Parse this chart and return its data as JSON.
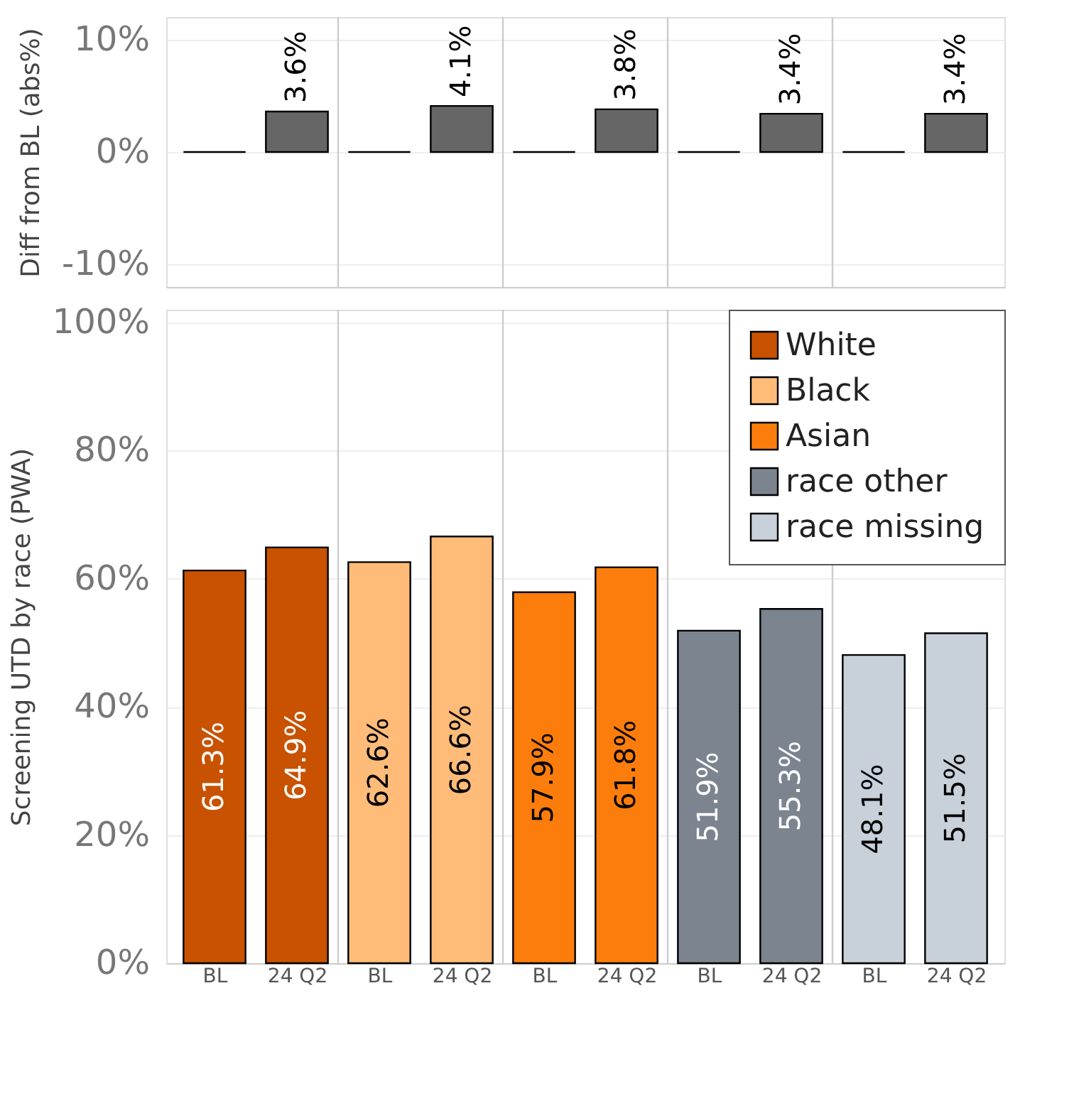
{
  "chart_data": [
    {
      "type": "bar",
      "ylabel": "Diff from BL (abs%)",
      "categories": [
        null,
        null,
        null,
        null,
        null,
        null,
        null,
        null,
        null,
        null
      ],
      "values": [
        0,
        3.6,
        0,
        4.1,
        0,
        3.8,
        0,
        3.4,
        0,
        3.4
      ],
      "colors": [
        "#000000",
        "#666666",
        "#000000",
        "#666666",
        "#000000",
        "#666666",
        "#000000",
        "#666666",
        "#000000",
        "#666666"
      ],
      "value_labels": [
        null,
        "3.6%",
        null,
        "4.1%",
        null,
        "3.8%",
        null,
        "3.4%",
        null,
        "3.4%"
      ],
      "ylim": [
        -12,
        12
      ],
      "yticks": [
        {
          "value": -10,
          "label": "-10%"
        },
        {
          "value": 0,
          "label": "0%"
        },
        {
          "value": 10,
          "label": "10%"
        }
      ],
      "grid": "y",
      "tick_labels": "y"
    },
    {
      "type": "bar",
      "ylabel": "Screening UTD by race (PWA)",
      "categories": [
        "BL",
        "24 Q2",
        "BL",
        "24 Q2",
        "BL",
        "24 Q2",
        "BL",
        "24 Q2",
        "BL",
        "24 Q2"
      ],
      "series": [
        {
          "name": "White",
          "color": "#c85200",
          "values": [
            61.3,
            64.9,
            null,
            null,
            null,
            null,
            null,
            null,
            null,
            null
          ],
          "value_labels": [
            "61.3%",
            "64.9%",
            null,
            null,
            null,
            null,
            null,
            null,
            null,
            null
          ]
        },
        {
          "name": "Black",
          "color": "#ffbc79",
          "values": [
            null,
            null,
            62.6,
            66.6,
            null,
            null,
            null,
            null,
            null,
            null
          ],
          "value_labels": [
            null,
            null,
            "62.6%",
            "66.6%",
            null,
            null,
            null,
            null,
            null,
            null
          ]
        },
        {
          "name": "Asian",
          "color": "#fc7d0b",
          "values": [
            null,
            null,
            null,
            null,
            57.9,
            61.8,
            null,
            null,
            null,
            null
          ],
          "value_labels": [
            null,
            null,
            null,
            null,
            "57.9%",
            "61.8%",
            null,
            null,
            null,
            null
          ]
        },
        {
          "name": "race other",
          "color": "#7b848f",
          "values": [
            null,
            null,
            null,
            null,
            null,
            null,
            51.9,
            55.3,
            null,
            null
          ],
          "value_labels": [
            null,
            null,
            null,
            null,
            null,
            null,
            "51.9%",
            "55.3%",
            null,
            null
          ]
        },
        {
          "name": "race missing",
          "color": "#c8d0d9",
          "values": [
            null,
            null,
            null,
            null,
            null,
            null,
            null,
            null,
            48.1,
            51.5
          ],
          "value_labels": [
            null,
            null,
            null,
            null,
            null,
            null,
            null,
            null,
            "48.1%",
            "51.5%"
          ]
        }
      ],
      "ylim": [
        0,
        102
      ],
      "yticks": [
        {
          "value": 0,
          "label": "0%"
        },
        {
          "value": 20,
          "label": "20%"
        },
        {
          "value": 40,
          "label": "40%"
        },
        {
          "value": 60,
          "label": "60%"
        },
        {
          "value": 80,
          "label": "80%"
        },
        {
          "value": 100,
          "label": "100%"
        }
      ],
      "grid": "y",
      "legend": "top right"
    }
  ]
}
